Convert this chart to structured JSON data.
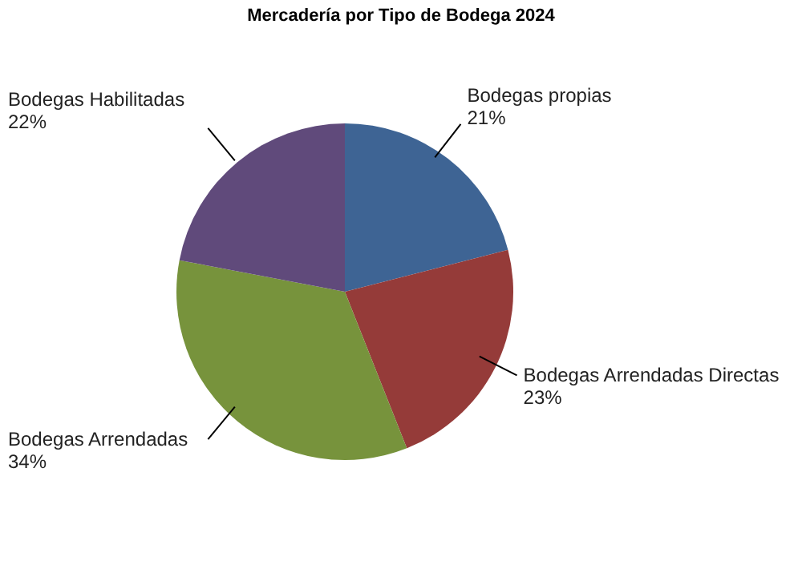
{
  "chart_data": {
    "type": "pie",
    "title": "Mercadería por Tipo de Bodega 2024",
    "categories": [
      "Bodegas propias",
      "Bodegas Arrendadas Directas",
      "Bodegas Arrendadas",
      "Bodegas Habilitadas"
    ],
    "values": [
      21,
      23,
      34,
      22
    ],
    "value_labels": [
      "21%",
      "23%",
      "34%",
      "22%"
    ],
    "colors": [
      "#3e6494",
      "#953b39",
      "#77933c",
      "#604a7b"
    ]
  }
}
